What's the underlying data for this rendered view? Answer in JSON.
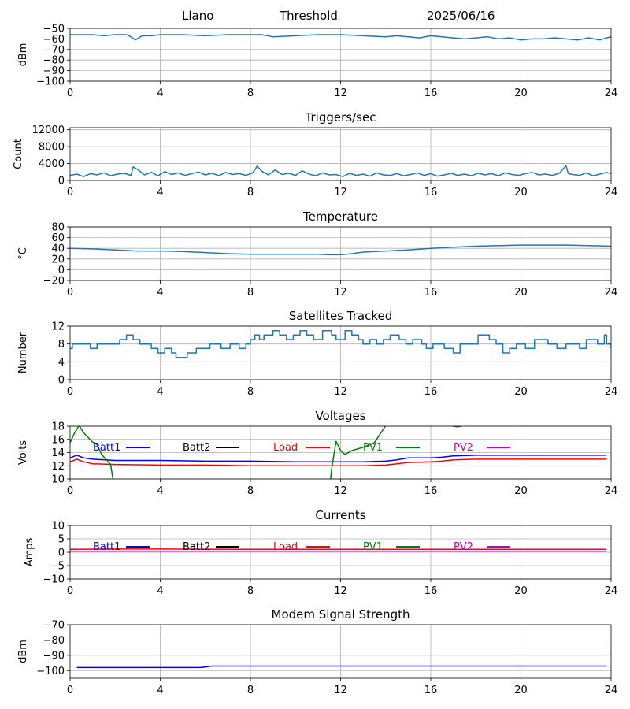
{
  "header": {
    "site": "Llano",
    "mode": "Threshold",
    "date": "2025/06/16"
  },
  "colors": {
    "default": "#1f77b4",
    "batt1": "#0000ff",
    "batt2": "#000000",
    "load": "#ff0000",
    "pv1": "#008000",
    "pv2": "#bf00bf",
    "grid": "#b0b0b0"
  },
  "chart_data": [
    {
      "id": "threshold",
      "type": "line",
      "title": "",
      "xlabel": "",
      "ylabel": "dBm",
      "xlim": [
        0,
        24
      ],
      "ylim": [
        -100,
        -50
      ],
      "xticks": [
        0,
        4,
        8,
        12,
        16,
        20,
        24
      ],
      "yticks": [
        -100,
        -90,
        -80,
        -70,
        -60,
        -50
      ],
      "grid": true,
      "series": [
        {
          "color": "default",
          "x": [
            0,
            0.5,
            1,
            1.5,
            2,
            2.5,
            2.7,
            2.9,
            3.2,
            3.6,
            4,
            5,
            6,
            7,
            8,
            8.5,
            9,
            10,
            11,
            12,
            13,
            14,
            14.5,
            15,
            15.5,
            16,
            16.5,
            17,
            17.5,
            18,
            18.5,
            19,
            19.5,
            20,
            20.5,
            21,
            21.5,
            22,
            22.5,
            23,
            23.5,
            23.8,
            24
          ],
          "y": [
            -56,
            -56,
            -56,
            -57,
            -56,
            -56,
            -58,
            -61,
            -57,
            -57,
            -56,
            -56,
            -57,
            -56,
            -56,
            -56,
            -58,
            -57,
            -56,
            -56,
            -57,
            -58,
            -57,
            -58,
            -59,
            -57,
            -58,
            -59,
            -60,
            -59,
            -58,
            -60,
            -59,
            -61,
            -60,
            -60,
            -59,
            -60,
            -61,
            -59,
            -61,
            -59,
            -58
          ]
        }
      ]
    },
    {
      "id": "triggers",
      "type": "line",
      "title": "Triggers/sec",
      "xlabel": "",
      "ylabel": "Count",
      "xlim": [
        0,
        24
      ],
      "ylim": [
        0,
        12500
      ],
      "xticks": [
        0,
        4,
        8,
        12,
        16,
        20,
        24
      ],
      "yticks": [
        0,
        4000,
        8000,
        12000
      ],
      "grid": true,
      "series": [
        {
          "color": "default",
          "x": [
            0,
            0.3,
            0.6,
            0.9,
            1.2,
            1.5,
            1.8,
            2.1,
            2.4,
            2.7,
            2.8,
            3,
            3.3,
            3.6,
            3.9,
            4.2,
            4.5,
            4.8,
            5.1,
            5.4,
            5.7,
            6,
            6.3,
            6.6,
            6.9,
            7.2,
            7.5,
            7.8,
            8.1,
            8.3,
            8.5,
            8.8,
            9.1,
            9.4,
            9.7,
            10,
            10.3,
            10.6,
            10.9,
            11.2,
            11.5,
            11.8,
            12.1,
            12.4,
            12.7,
            13,
            13.3,
            13.6,
            13.9,
            14.2,
            14.5,
            14.8,
            15.1,
            15.4,
            15.7,
            16,
            16.3,
            16.6,
            16.9,
            17.2,
            17.5,
            17.8,
            18.1,
            18.4,
            18.7,
            19,
            19.3,
            19.6,
            19.9,
            20.2,
            20.5,
            20.8,
            21.1,
            21.4,
            21.7,
            22,
            22.1,
            22.3,
            22.6,
            22.9,
            23.2,
            23.5,
            23.8,
            24
          ],
          "y": [
            1200,
            1500,
            900,
            1600,
            1300,
            1800,
            1100,
            1500,
            1700,
            1200,
            3200,
            2600,
            1300,
            1900,
            1100,
            2100,
            1400,
            1800,
            1200,
            1600,
            2000,
            1300,
            1700,
            1100,
            1900,
            1400,
            1600,
            1200,
            1800,
            3400,
            2200,
            1300,
            2500,
            1400,
            1700,
            1200,
            2300,
            1500,
            1100,
            1800,
            1300,
            1400,
            900,
            1700,
            1200,
            1500,
            1000,
            1800,
            1300,
            1200,
            1600,
            1100,
            1400,
            1800,
            1200,
            1600,
            1000,
            1300,
            1700,
            1200,
            1500,
            1100,
            1700,
            1300,
            1600,
            1100,
            1800,
            1400,
            1200,
            1600,
            1900,
            1300,
            1500,
            1200,
            1700,
            3500,
            1600,
            1400,
            1200,
            1800,
            1100,
            1500,
            1900,
            1600
          ]
        }
      ]
    },
    {
      "id": "temperature",
      "type": "line",
      "title": "Temperature",
      "xlabel": "",
      "ylabel": "°C",
      "xlim": [
        0,
        24
      ],
      "ylim": [
        -20,
        80
      ],
      "xticks": [
        0,
        4,
        8,
        12,
        16,
        20,
        24
      ],
      "yticks": [
        -20,
        0,
        20,
        40,
        60,
        80
      ],
      "grid": true,
      "series": [
        {
          "color": "default",
          "x": [
            0,
            1,
            2,
            3,
            4,
            5,
            6,
            7,
            8,
            9,
            10,
            11,
            11.5,
            12,
            12.5,
            13,
            14,
            15,
            16,
            17,
            18,
            19,
            20,
            21,
            22,
            23,
            24
          ],
          "y": [
            40,
            39,
            37,
            35,
            35,
            34,
            32,
            30,
            29,
            29,
            29,
            29,
            28,
            28,
            30,
            33,
            35,
            37,
            40,
            42,
            44,
            45,
            46,
            46,
            46,
            45,
            44
          ]
        }
      ]
    },
    {
      "id": "satellites",
      "type": "line",
      "title": "Satellites Tracked",
      "xlabel": "",
      "ylabel": "Number",
      "xlim": [
        0,
        24
      ],
      "ylim": [
        0,
        12
      ],
      "xticks": [
        0,
        4,
        8,
        12,
        16,
        20,
        24
      ],
      "yticks": [
        0,
        4,
        8,
        12
      ],
      "grid": true,
      "series": [
        {
          "color": "default",
          "step": true,
          "x": [
            0,
            0.1,
            0.9,
            1.2,
            2.2,
            2.5,
            2.8,
            3.1,
            3.6,
            3.9,
            4.2,
            4.5,
            4.7,
            5.2,
            5.6,
            6.2,
            6.7,
            7.1,
            7.5,
            7.8,
            8,
            8.2,
            8.4,
            8.6,
            9,
            9.3,
            9.6,
            9.9,
            10.2,
            10.5,
            10.8,
            11.2,
            11.6,
            11.8,
            12.2,
            12.5,
            12.8,
            13,
            13.3,
            13.6,
            13.9,
            14.2,
            14.6,
            14.9,
            15.2,
            15.6,
            15.8,
            16.1,
            16.6,
            17,
            17.3,
            18.1,
            18.6,
            18.9,
            19.2,
            19.5,
            19.8,
            20.2,
            20.6,
            21.2,
            21.6,
            22,
            22.6,
            22.9,
            23.4,
            23.7,
            23.8,
            24
          ],
          "y": [
            7,
            8,
            7,
            8,
            9,
            10,
            9,
            8,
            7,
            6,
            7,
            6,
            5,
            6,
            7,
            8,
            7,
            8,
            7,
            8,
            9,
            10,
            9,
            10,
            11,
            10,
            9,
            10,
            11,
            10,
            9,
            11,
            10,
            9,
            11,
            10,
            9,
            8,
            9,
            8,
            9,
            10,
            9,
            8,
            9,
            8,
            7,
            8,
            7,
            6,
            8,
            10,
            9,
            8,
            6,
            7,
            8,
            7,
            9,
            8,
            7,
            8,
            7,
            9,
            8,
            10,
            8,
            7
          ]
        }
      ]
    },
    {
      "id": "voltages",
      "type": "line",
      "title": "Voltages",
      "xlabel": "",
      "ylabel": "Volts",
      "xlim": [
        0,
        24
      ],
      "ylim": [
        10,
        18
      ],
      "xticks": [
        0,
        4,
        8,
        12,
        16,
        20,
        24
      ],
      "yticks": [
        10,
        12,
        14,
        16,
        18
      ],
      "grid": true,
      "legend": [
        {
          "label": "Batt1",
          "color": "batt1"
        },
        {
          "label": "Batt2",
          "color": "batt2"
        },
        {
          "label": "Load",
          "color": "load"
        },
        {
          "label": "PV1",
          "color": "pv1"
        },
        {
          "label": "PV2",
          "color": "pv2"
        }
      ],
      "series": [
        {
          "color": "batt1",
          "x": [
            0,
            0.3,
            0.6,
            1,
            2,
            4,
            6,
            8,
            10,
            12,
            13,
            14,
            14.5,
            15,
            16,
            16.5,
            17,
            18,
            20,
            22,
            23.8
          ],
          "y": [
            13.2,
            13.6,
            13.2,
            13,
            12.8,
            12.8,
            12.7,
            12.7,
            12.6,
            12.6,
            12.6,
            12.7,
            12.9,
            13.2,
            13.2,
            13.3,
            13.5,
            13.6,
            13.6,
            13.6,
            13.6
          ]
        },
        {
          "color": "load",
          "x": [
            0,
            0.3,
            0.6,
            1,
            2,
            4,
            6,
            8,
            10,
            12,
            13,
            14,
            14.5,
            15,
            16,
            16.5,
            17,
            18,
            20,
            22,
            23.8
          ],
          "y": [
            12.6,
            13,
            12.6,
            12.3,
            12.2,
            12.1,
            12.1,
            12,
            12,
            12,
            12,
            12.1,
            12.3,
            12.5,
            12.6,
            12.7,
            12.9,
            13,
            13,
            13,
            13
          ]
        },
        {
          "color": "pv1",
          "x": [
            0,
            0.2,
            0.4,
            0.6,
            1,
            1.2,
            1.4,
            1.8,
            1.9,
            2,
            11.5,
            11.6,
            11.8,
            12,
            12.2,
            12.5,
            13,
            13.5,
            14,
            14.5,
            15,
            16,
            17,
            17.2,
            17.6,
            18,
            24
          ],
          "y": [
            15.5,
            17,
            18.1,
            17,
            15.6,
            15.2,
            13.7,
            12.2,
            10,
            8,
            8,
            11.5,
            15.7,
            14.3,
            13.7,
            14.3,
            14.8,
            15.5,
            18.1,
            18.5,
            19,
            19,
            18,
            17.9,
            18.2,
            19,
            19
          ]
        }
      ]
    },
    {
      "id": "currents",
      "type": "line",
      "title": "Currents",
      "xlabel": "",
      "ylabel": "Amps",
      "xlim": [
        0,
        24
      ],
      "ylim": [
        -10,
        10
      ],
      "xticks": [
        0,
        4,
        8,
        12,
        16,
        20,
        24
      ],
      "yticks": [
        -10,
        -5,
        0,
        5,
        10
      ],
      "grid": true,
      "legend": [
        {
          "label": "Batt1",
          "color": "batt1"
        },
        {
          "label": "Batt2",
          "color": "batt2"
        },
        {
          "label": "Load",
          "color": "load"
        },
        {
          "label": "PV1",
          "color": "pv1"
        },
        {
          "label": "PV2",
          "color": "pv2"
        }
      ],
      "series": [
        {
          "color": "pv2",
          "x": [
            0,
            23.8
          ],
          "y": [
            0.4,
            0.4
          ]
        },
        {
          "color": "load",
          "x": [
            0,
            2,
            4,
            8,
            12,
            16,
            20,
            23.8
          ],
          "y": [
            1.1,
            1.2,
            1.2,
            1.1,
            1.1,
            1.1,
            1.1,
            1.1
          ]
        }
      ]
    },
    {
      "id": "modem",
      "type": "line",
      "title": "Modem Signal Strength",
      "xlabel": "",
      "ylabel": "dBm",
      "xlim": [
        0,
        24
      ],
      "ylim": [
        -105,
        -70
      ],
      "xticks": [
        0,
        4,
        8,
        12,
        16,
        20,
        24
      ],
      "yticks": [
        -100,
        -90,
        -80,
        -70
      ],
      "grid": true,
      "series": [
        {
          "color": "batt1",
          "x": [
            0.3,
            5.8,
            6.3,
            23.8
          ],
          "y": [
            -98,
            -98,
            -97,
            -97
          ]
        }
      ]
    }
  ]
}
